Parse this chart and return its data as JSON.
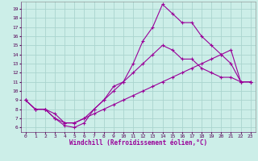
{
  "xlabel": "Windchill (Refroidissement éolien,°C)",
  "bg_color": "#cceee8",
  "grid_color": "#aad4ce",
  "line_color": "#990099",
  "xlim": [
    -0.5,
    23.5
  ],
  "ylim": [
    5.5,
    19.8
  ],
  "xticks": [
    0,
    1,
    2,
    3,
    4,
    5,
    6,
    7,
    8,
    9,
    10,
    11,
    12,
    13,
    14,
    15,
    16,
    17,
    18,
    19,
    20,
    21,
    22,
    23
  ],
  "yticks": [
    6,
    7,
    8,
    9,
    10,
    11,
    12,
    13,
    14,
    15,
    16,
    17,
    18,
    19
  ],
  "line1_x": [
    0,
    1,
    2,
    3,
    4,
    5,
    6,
    7,
    8,
    9,
    10,
    11,
    12,
    13,
    14,
    15,
    16,
    17,
    18,
    19,
    20,
    21,
    22,
    23
  ],
  "line1_y": [
    9.0,
    8.0,
    8.0,
    7.0,
    6.2,
    6.0,
    6.5,
    8.0,
    9.0,
    10.5,
    11.0,
    13.0,
    15.5,
    17.0,
    19.5,
    18.5,
    17.5,
    17.5,
    16.0,
    15.0,
    14.0,
    13.0,
    11.0,
    11.0
  ],
  "line2_x": [
    0,
    1,
    2,
    3,
    4,
    5,
    6,
    7,
    8,
    9,
    10,
    11,
    12,
    13,
    14,
    15,
    16,
    17,
    18,
    19,
    20,
    21,
    22,
    23
  ],
  "line2_y": [
    9.0,
    8.0,
    8.0,
    7.0,
    6.5,
    6.5,
    7.0,
    8.0,
    9.0,
    10.0,
    11.0,
    12.0,
    13.0,
    14.0,
    15.0,
    14.5,
    13.5,
    13.5,
    12.5,
    12.0,
    11.5,
    11.5,
    11.0,
    11.0
  ],
  "line3_x": [
    0,
    1,
    2,
    3,
    4,
    5,
    6,
    7,
    8,
    9,
    10,
    11,
    12,
    13,
    14,
    15,
    16,
    17,
    18,
    19,
    20,
    21,
    22,
    23
  ],
  "line3_y": [
    9.0,
    8.0,
    8.0,
    7.5,
    6.5,
    6.5,
    7.0,
    7.5,
    8.0,
    8.5,
    9.0,
    9.5,
    10.0,
    10.5,
    11.0,
    11.5,
    12.0,
    12.5,
    13.0,
    13.5,
    14.0,
    14.5,
    11.0,
    11.0
  ]
}
